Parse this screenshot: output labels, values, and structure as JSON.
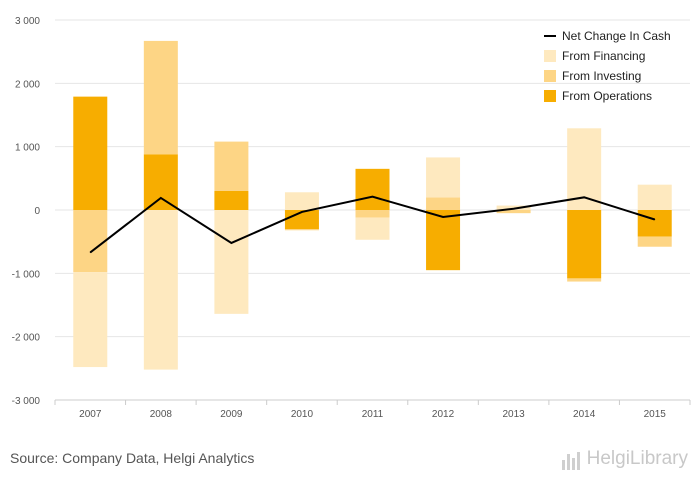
{
  "chart_data": {
    "type": "bar",
    "stacked": true,
    "categories": [
      "2007",
      "2008",
      "2009",
      "2010",
      "2011",
      "2012",
      "2013",
      "2014",
      "2015"
    ],
    "series": [
      {
        "name": "From Operations",
        "color": "#f7ad00",
        "values": [
          1790,
          880,
          300,
          -300,
          650,
          -950,
          0,
          -1080,
          -420
        ]
      },
      {
        "name": "From Investing",
        "color": "#fdd585",
        "values": [
          -980,
          1790,
          780,
          -20,
          -120,
          200,
          -50,
          -50,
          -160
        ]
      },
      {
        "name": "From Financing",
        "color": "#fee9bf",
        "values": [
          -1500,
          -2520,
          -1640,
          280,
          -350,
          630,
          70,
          1290,
          400
        ]
      }
    ],
    "line": {
      "name": "Net Change In Cash",
      "color": "#000000",
      "values": [
        -670,
        190,
        -520,
        -30,
        210,
        -110,
        20,
        200,
        -150
      ]
    },
    "ylim": [
      -3000,
      3000
    ],
    "yticks": [
      -3000,
      -2000,
      -1000,
      0,
      1000,
      2000,
      3000
    ],
    "ytick_labels": [
      "-3 000",
      "-2 000",
      "-1 000",
      "0",
      "1 000",
      "2 000",
      "3 000"
    ],
    "legend": {
      "position": "top-right",
      "order": [
        "Net Change In Cash",
        "From Financing",
        "From Investing",
        "From Operations"
      ]
    },
    "grid": true,
    "title": "",
    "xlabel": "",
    "ylabel": ""
  },
  "footer": {
    "source": "Source: Company Data, Helgi Analytics",
    "logo_text": "HelgiLibrary"
  }
}
